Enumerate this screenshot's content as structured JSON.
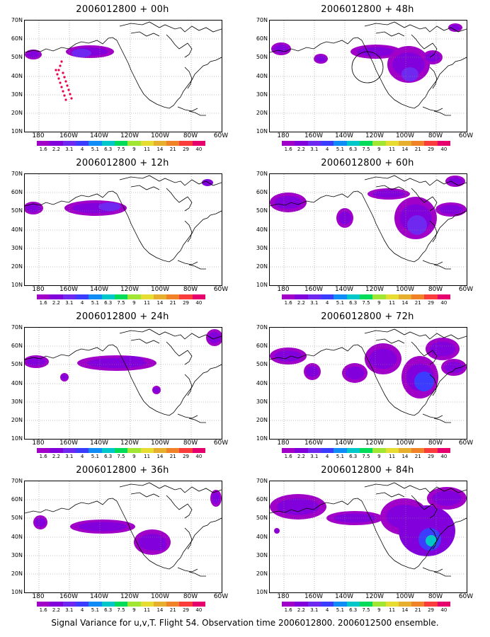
{
  "panels": [
    {
      "title": "2006012800 + 00h"
    },
    {
      "title": "2006012800 + 48h"
    },
    {
      "title": "2006012800 + 12h"
    },
    {
      "title": "2006012800 + 60h"
    },
    {
      "title": "2006012800 + 24h"
    },
    {
      "title": "2006012800 + 72h"
    },
    {
      "title": "2006012800 + 36h"
    },
    {
      "title": "2006012800 + 84h"
    }
  ],
  "axes": {
    "y_ticks": [
      "70N",
      "60N",
      "50N",
      "40N",
      "30N",
      "20N",
      "10N"
    ],
    "x_ticks": [
      "180",
      "160W",
      "140W",
      "120W",
      "100W",
      "80W",
      "60W"
    ]
  },
  "colorbar": {
    "labels": [
      "1.6",
      "2.2",
      "3.1",
      "4",
      "5.1",
      "6.3",
      "7.5",
      "9",
      "11",
      "14",
      "21",
      "29",
      "40"
    ],
    "colors": [
      "#a000c8",
      "#8200dc",
      "#6e28f0",
      "#3c3cff",
      "#0f8cf5",
      "#00c8c8",
      "#00dc5a",
      "#a0e632",
      "#e6dc32",
      "#e6af2d",
      "#f08228",
      "#fa3c3c",
      "#e6006e"
    ]
  },
  "caption": "Signal Variance for u,v,T. Flight 54. Observation time 2006012800. 2006012500 ensemble."
}
